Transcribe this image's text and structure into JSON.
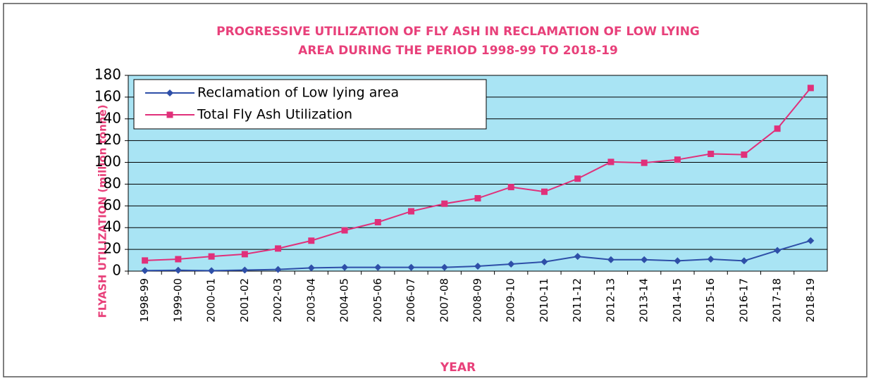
{
  "chart_data": {
    "type": "line",
    "title": [
      "PROGRESSIVE UTILIZATION OF FLY ASH IN RECLAMATION OF LOW LYING",
      "AREA DURING THE PERIOD 1998-99 TO 2018-19"
    ],
    "x_label": "YEAR",
    "y_label": "FLYASH UTILIZATION (million tonne)",
    "categories": [
      "1998-99",
      "1999-00",
      "2000-01",
      "2001-02",
      "2002-03",
      "2003-04",
      "2004-05",
      "2005-06",
      "2006-07",
      "2007-08",
      "2008-09",
      "2009-10",
      "2010-11",
      "2011-12",
      "2012-13",
      "2013-14",
      "2014-15",
      "2015-16",
      "2016-17",
      "2017-18",
      "2018-19"
    ],
    "series": [
      {
        "name": "Reclamation of Low lying area",
        "color": "#2e4fa8",
        "marker": "diamond",
        "values": [
          0.5,
          0.8,
          0.4,
          1.0,
          1.5,
          3.0,
          3.5,
          3.5,
          3.5,
          3.5,
          4.5,
          6.5,
          8.5,
          13.5,
          10.5,
          10.5,
          9.5,
          11,
          9.5,
          19,
          28
        ]
      },
      {
        "name": "Total Fly Ash Utilization",
        "color": "#e0307a",
        "marker": "square",
        "values": [
          9.8,
          11,
          13.5,
          15.6,
          20.8,
          28,
          37.5,
          45,
          55,
          62,
          67,
          77.3,
          73,
          85,
          100.4,
          99.6,
          102.5,
          107.8,
          107.1,
          131,
          168.4
        ]
      }
    ],
    "ylim": [
      0,
      180
    ],
    "yticks": [
      0,
      20,
      40,
      60,
      80,
      100,
      120,
      140,
      160,
      180
    ],
    "grid": true,
    "legend": "upper left",
    "plot_background": "#a9e4f4"
  }
}
